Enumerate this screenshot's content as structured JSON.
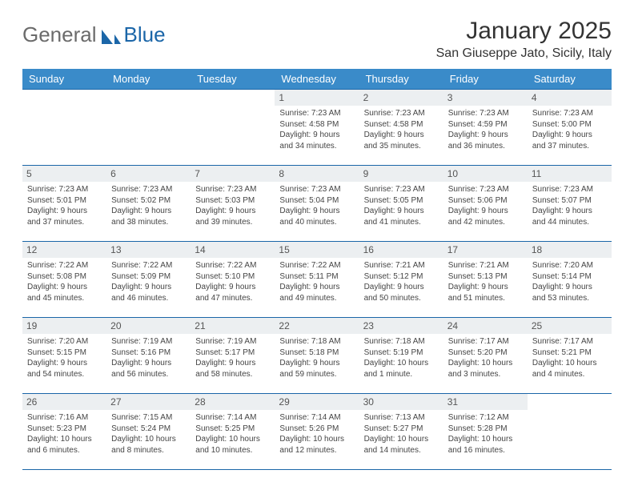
{
  "brand": {
    "part1": "General",
    "part2": "Blue"
  },
  "title": {
    "month": "January 2025",
    "location": "San Giuseppe Jato, Sicily, Italy"
  },
  "dow": [
    "Sunday",
    "Monday",
    "Tuesday",
    "Wednesday",
    "Thursday",
    "Friday",
    "Saturday"
  ],
  "colors": {
    "header_blue": "#3a8bc9",
    "accent_blue": "#1b66a8",
    "day_bg": "#eceff1",
    "text": "#2a2a2a",
    "muted": "#454545",
    "page_bg": "#ffffff"
  },
  "weeks": [
    [
      {
        "n": "",
        "sr": "",
        "ss": "",
        "dl": ""
      },
      {
        "n": "",
        "sr": "",
        "ss": "",
        "dl": ""
      },
      {
        "n": "",
        "sr": "",
        "ss": "",
        "dl": ""
      },
      {
        "n": "1",
        "sr": "Sunrise: 7:23 AM",
        "ss": "Sunset: 4:58 PM",
        "dl": "Daylight: 9 hours and 34 minutes."
      },
      {
        "n": "2",
        "sr": "Sunrise: 7:23 AM",
        "ss": "Sunset: 4:58 PM",
        "dl": "Daylight: 9 hours and 35 minutes."
      },
      {
        "n": "3",
        "sr": "Sunrise: 7:23 AM",
        "ss": "Sunset: 4:59 PM",
        "dl": "Daylight: 9 hours and 36 minutes."
      },
      {
        "n": "4",
        "sr": "Sunrise: 7:23 AM",
        "ss": "Sunset: 5:00 PM",
        "dl": "Daylight: 9 hours and 37 minutes."
      }
    ],
    [
      {
        "n": "5",
        "sr": "Sunrise: 7:23 AM",
        "ss": "Sunset: 5:01 PM",
        "dl": "Daylight: 9 hours and 37 minutes."
      },
      {
        "n": "6",
        "sr": "Sunrise: 7:23 AM",
        "ss": "Sunset: 5:02 PM",
        "dl": "Daylight: 9 hours and 38 minutes."
      },
      {
        "n": "7",
        "sr": "Sunrise: 7:23 AM",
        "ss": "Sunset: 5:03 PM",
        "dl": "Daylight: 9 hours and 39 minutes."
      },
      {
        "n": "8",
        "sr": "Sunrise: 7:23 AM",
        "ss": "Sunset: 5:04 PM",
        "dl": "Daylight: 9 hours and 40 minutes."
      },
      {
        "n": "9",
        "sr": "Sunrise: 7:23 AM",
        "ss": "Sunset: 5:05 PM",
        "dl": "Daylight: 9 hours and 41 minutes."
      },
      {
        "n": "10",
        "sr": "Sunrise: 7:23 AM",
        "ss": "Sunset: 5:06 PM",
        "dl": "Daylight: 9 hours and 42 minutes."
      },
      {
        "n": "11",
        "sr": "Sunrise: 7:23 AM",
        "ss": "Sunset: 5:07 PM",
        "dl": "Daylight: 9 hours and 44 minutes."
      }
    ],
    [
      {
        "n": "12",
        "sr": "Sunrise: 7:22 AM",
        "ss": "Sunset: 5:08 PM",
        "dl": "Daylight: 9 hours and 45 minutes."
      },
      {
        "n": "13",
        "sr": "Sunrise: 7:22 AM",
        "ss": "Sunset: 5:09 PM",
        "dl": "Daylight: 9 hours and 46 minutes."
      },
      {
        "n": "14",
        "sr": "Sunrise: 7:22 AM",
        "ss": "Sunset: 5:10 PM",
        "dl": "Daylight: 9 hours and 47 minutes."
      },
      {
        "n": "15",
        "sr": "Sunrise: 7:22 AM",
        "ss": "Sunset: 5:11 PM",
        "dl": "Daylight: 9 hours and 49 minutes."
      },
      {
        "n": "16",
        "sr": "Sunrise: 7:21 AM",
        "ss": "Sunset: 5:12 PM",
        "dl": "Daylight: 9 hours and 50 minutes."
      },
      {
        "n": "17",
        "sr": "Sunrise: 7:21 AM",
        "ss": "Sunset: 5:13 PM",
        "dl": "Daylight: 9 hours and 51 minutes."
      },
      {
        "n": "18",
        "sr": "Sunrise: 7:20 AM",
        "ss": "Sunset: 5:14 PM",
        "dl": "Daylight: 9 hours and 53 minutes."
      }
    ],
    [
      {
        "n": "19",
        "sr": "Sunrise: 7:20 AM",
        "ss": "Sunset: 5:15 PM",
        "dl": "Daylight: 9 hours and 54 minutes."
      },
      {
        "n": "20",
        "sr": "Sunrise: 7:19 AM",
        "ss": "Sunset: 5:16 PM",
        "dl": "Daylight: 9 hours and 56 minutes."
      },
      {
        "n": "21",
        "sr": "Sunrise: 7:19 AM",
        "ss": "Sunset: 5:17 PM",
        "dl": "Daylight: 9 hours and 58 minutes."
      },
      {
        "n": "22",
        "sr": "Sunrise: 7:18 AM",
        "ss": "Sunset: 5:18 PM",
        "dl": "Daylight: 9 hours and 59 minutes."
      },
      {
        "n": "23",
        "sr": "Sunrise: 7:18 AM",
        "ss": "Sunset: 5:19 PM",
        "dl": "Daylight: 10 hours and 1 minute."
      },
      {
        "n": "24",
        "sr": "Sunrise: 7:17 AM",
        "ss": "Sunset: 5:20 PM",
        "dl": "Daylight: 10 hours and 3 minutes."
      },
      {
        "n": "25",
        "sr": "Sunrise: 7:17 AM",
        "ss": "Sunset: 5:21 PM",
        "dl": "Daylight: 10 hours and 4 minutes."
      }
    ],
    [
      {
        "n": "26",
        "sr": "Sunrise: 7:16 AM",
        "ss": "Sunset: 5:23 PM",
        "dl": "Daylight: 10 hours and 6 minutes."
      },
      {
        "n": "27",
        "sr": "Sunrise: 7:15 AM",
        "ss": "Sunset: 5:24 PM",
        "dl": "Daylight: 10 hours and 8 minutes."
      },
      {
        "n": "28",
        "sr": "Sunrise: 7:14 AM",
        "ss": "Sunset: 5:25 PM",
        "dl": "Daylight: 10 hours and 10 minutes."
      },
      {
        "n": "29",
        "sr": "Sunrise: 7:14 AM",
        "ss": "Sunset: 5:26 PM",
        "dl": "Daylight: 10 hours and 12 minutes."
      },
      {
        "n": "30",
        "sr": "Sunrise: 7:13 AM",
        "ss": "Sunset: 5:27 PM",
        "dl": "Daylight: 10 hours and 14 minutes."
      },
      {
        "n": "31",
        "sr": "Sunrise: 7:12 AM",
        "ss": "Sunset: 5:28 PM",
        "dl": "Daylight: 10 hours and 16 minutes."
      },
      {
        "n": "",
        "sr": "",
        "ss": "",
        "dl": ""
      }
    ]
  ]
}
